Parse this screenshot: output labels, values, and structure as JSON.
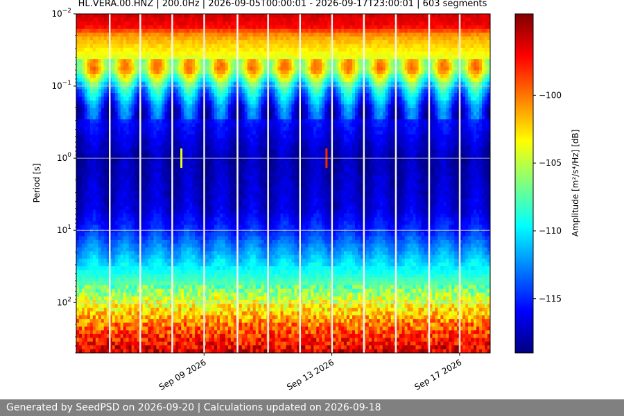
{
  "header": {
    "title": "HL.VERA.00.HNZ | 200.0Hz | 2026-09-05T00:00:01 - 2026-09-17T23:00:01 | 603 segments"
  },
  "footer": {
    "text": "Generated by SeedPSD on 2026-09-20 | Calculations updated on 2026-09-18"
  },
  "chart_data": {
    "type": "heatmap",
    "title": "HL.VERA.00.HNZ | 200.0Hz | 2026-09-05T00:00:01 - 2026-09-17T23:00:01 | 603 segments",
    "xlabel": "",
    "ylabel": "Period [s]",
    "x_range": [
      "2026-09-05T00:00:01",
      "2026-09-17T23:00:01"
    ],
    "x_ticks": [
      {
        "date": "2026-09-09",
        "label": "Sep 09 2026"
      },
      {
        "date": "2026-09-13",
        "label": "Sep 13 2026"
      },
      {
        "date": "2026-09-17",
        "label": "Sep 17 2026"
      }
    ],
    "y_scale": "log",
    "y_inverted": true,
    "ylim": [
      0.01,
      500
    ],
    "y_ticks": [
      {
        "value": 0.01,
        "label_base": "10",
        "label_exp": "−2"
      },
      {
        "value": 0.1,
        "label_base": "10",
        "label_exp": "−1"
      },
      {
        "value": 1,
        "label_base": "10",
        "label_exp": "0"
      },
      {
        "value": 10,
        "label_base": "10",
        "label_exp": "1"
      },
      {
        "value": 100,
        "label_base": "10",
        "label_exp": "2"
      }
    ],
    "grid": true,
    "colormap": "jet",
    "colorbar": {
      "label": "Amplitude [m²/s⁴/Hz] [dB]",
      "range": [
        -119,
        -94
      ],
      "ticks": [
        {
          "value": -100,
          "label": "−100"
        },
        {
          "value": -105,
          "label": "−105"
        },
        {
          "value": -110,
          "label": "−110"
        },
        {
          "value": -115,
          "label": "−115"
        }
      ]
    },
    "amplitude_profile_db": [
      {
        "period": 0.01,
        "db": -96
      },
      {
        "period": 0.015,
        "db": -97
      },
      {
        "period": 0.02,
        "db": -101
      },
      {
        "period": 0.04,
        "db": -104
      },
      {
        "period": 0.06,
        "db": -103
      },
      {
        "period": 0.1,
        "db": -110
      },
      {
        "period": 0.2,
        "db": -115
      },
      {
        "period": 1,
        "db": -118
      },
      {
        "period": 5,
        "db": -117
      },
      {
        "period": 10,
        "db": -115
      },
      {
        "period": 20,
        "db": -112
      },
      {
        "period": 50,
        "db": -108
      },
      {
        "period": 100,
        "db": -104
      },
      {
        "period": 200,
        "db": -100
      },
      {
        "period": 500,
        "db": -96
      }
    ],
    "data_gaps": [
      "2026-09-06T01:00",
      "2026-09-07T00:00",
      "2026-09-08T00:00",
      "2026-09-09T00:00",
      "2026-09-10T01:00",
      "2026-09-11T00:00",
      "2026-09-12T00:00",
      "2026-09-13T00:00",
      "2026-09-14T00:00",
      "2026-09-15T00:00",
      "2026-09-16T01:00",
      "2026-09-17T00:00"
    ],
    "events": [
      {
        "date": "2026-09-08T07:00",
        "period": 1,
        "db": -104
      },
      {
        "date": "2026-09-12T20:00",
        "period": 1,
        "db": -98
      }
    ]
  }
}
